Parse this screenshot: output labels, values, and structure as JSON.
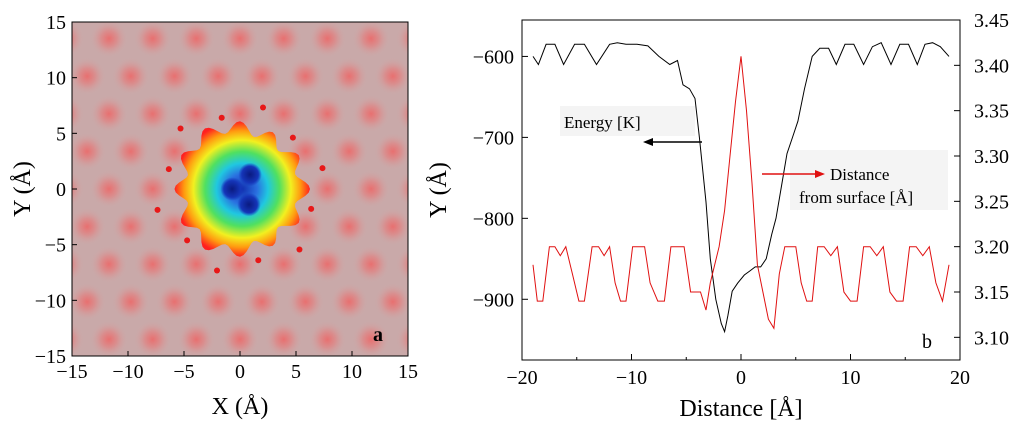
{
  "chart_data": [
    {
      "type": "heatmap",
      "panel_label": "a",
      "xlabel": "X (Å)",
      "ylabel": "Y (Å)",
      "xlim": [
        -15,
        15
      ],
      "ylim": [
        -15,
        15
      ],
      "xticks": [
        "−15",
        "−10",
        "−5",
        "0",
        "5",
        "10",
        "15"
      ],
      "yticks": [
        "15",
        "10",
        "5",
        "0",
        "−5",
        "−10",
        "−15"
      ],
      "lattice_spacing": 3.9,
      "central_wells": [
        {
          "x": -0.7,
          "y": 0.0
        },
        {
          "x": 0.9,
          "y": 1.3
        },
        {
          "x": 0.8,
          "y": -1.4
        }
      ],
      "colors": {
        "background": "#c9a9a9",
        "lattice_spot": "#e07878",
        "core": "#1f3fc0"
      }
    },
    {
      "type": "line",
      "panel_label": "b",
      "xlabel": "Distance [Å]",
      "ylabel": "Y (Å)",
      "xlim": [
        -20,
        20
      ],
      "ylim_left": [
        -975,
        -555
      ],
      "ylim_right": [
        3.075,
        3.45
      ],
      "xticks": [
        "−20",
        "−10",
        "0",
        "10",
        "20"
      ],
      "yticks_left": [
        "−600",
        "−700",
        "−800",
        "−900"
      ],
      "yticks_right": [
        "3.45",
        "3.40",
        "3.35",
        "3.30",
        "3.25",
        "3.20",
        "3.15",
        "3.10"
      ],
      "annotations": {
        "energy": "Energy [K]",
        "distance_line1": "Distance",
        "distance_line2": "from surface [Å]"
      },
      "series": [
        {
          "name": "Energy [K]",
          "axis": "left",
          "color": "#000000",
          "x": [
            -19,
            -18.5,
            -17.8,
            -17,
            -16.2,
            -15.2,
            -14.3,
            -13.2,
            -12,
            -11.3,
            -10.5,
            -9.5,
            -8.5,
            -7.5,
            -6.5,
            -5.8,
            -5.3,
            -4.7,
            -4.2,
            -3.8,
            -3.2,
            -2.8,
            -2.3,
            -1.8,
            -1.5,
            -1.2,
            -0.8,
            -0.3,
            0.3,
            0.8,
            1.3,
            1.8,
            2.3,
            2.8,
            3.2,
            3.7,
            4.2,
            4.7,
            5.2,
            5.8,
            6.5,
            7.2,
            8,
            8.7,
            9.5,
            10.3,
            11.2,
            12,
            12.8,
            13.7,
            14.5,
            15.3,
            16.1,
            16.8,
            17.5,
            18.2,
            19
          ],
          "y": [
            -600,
            -610,
            -585,
            -585,
            -610,
            -585,
            -585,
            -610,
            -585,
            -583,
            -585,
            -585,
            -587,
            -600,
            -610,
            -605,
            -635,
            -640,
            -652,
            -700,
            -780,
            -850,
            -900,
            -930,
            -940,
            -920,
            -890,
            -880,
            -870,
            -865,
            -860,
            -860,
            -850,
            -820,
            -800,
            -760,
            -720,
            -700,
            -680,
            -640,
            -600,
            -590,
            -590,
            -610,
            -585,
            -585,
            -610,
            -588,
            -583,
            -610,
            -585,
            -585,
            -610,
            -585,
            -583,
            -588,
            -600
          ]
        },
        {
          "name": "Distance from surface [Å]",
          "axis": "right",
          "color": "#e01010",
          "x": [
            -19,
            -18.6,
            -18.1,
            -17.5,
            -17,
            -16.5,
            -16,
            -15.4,
            -14.8,
            -14.3,
            -13.6,
            -13,
            -12.5,
            -12,
            -11.5,
            -11,
            -10.5,
            -9.9,
            -9.3,
            -8.8,
            -8.3,
            -7.6,
            -7,
            -6.4,
            -5.8,
            -5.2,
            -4.6,
            -4.1,
            -3.7,
            -3.2,
            -2.8,
            -2.4,
            -2,
            -1.5,
            -1,
            -0.5,
            0,
            0.5,
            1,
            1.5,
            2,
            2.5,
            3,
            3.5,
            4,
            4.5,
            5,
            5.5,
            6,
            6.5,
            7,
            7.6,
            8.2,
            8.8,
            9.4,
            10,
            10.6,
            11.2,
            11.8,
            12.4,
            13,
            13.6,
            14.2,
            14.8,
            15.4,
            16,
            16.6,
            17.2,
            17.8,
            18.4,
            19
          ],
          "y": [
            3.18,
            3.14,
            3.14,
            3.2,
            3.2,
            3.19,
            3.2,
            3.17,
            3.14,
            3.14,
            3.2,
            3.2,
            3.19,
            3.2,
            3.16,
            3.14,
            3.14,
            3.2,
            3.2,
            3.2,
            3.16,
            3.14,
            3.14,
            3.2,
            3.2,
            3.2,
            3.15,
            3.15,
            3.15,
            3.13,
            3.16,
            3.18,
            3.2,
            3.24,
            3.3,
            3.36,
            3.41,
            3.35,
            3.27,
            3.18,
            3.15,
            3.12,
            3.11,
            3.17,
            3.2,
            3.2,
            3.2,
            3.16,
            3.14,
            3.14,
            3.2,
            3.2,
            3.19,
            3.2,
            3.15,
            3.14,
            3.14,
            3.2,
            3.2,
            3.19,
            3.2,
            3.15,
            3.14,
            3.14,
            3.2,
            3.2,
            3.19,
            3.2,
            3.16,
            3.14,
            3.18
          ]
        }
      ]
    }
  ]
}
